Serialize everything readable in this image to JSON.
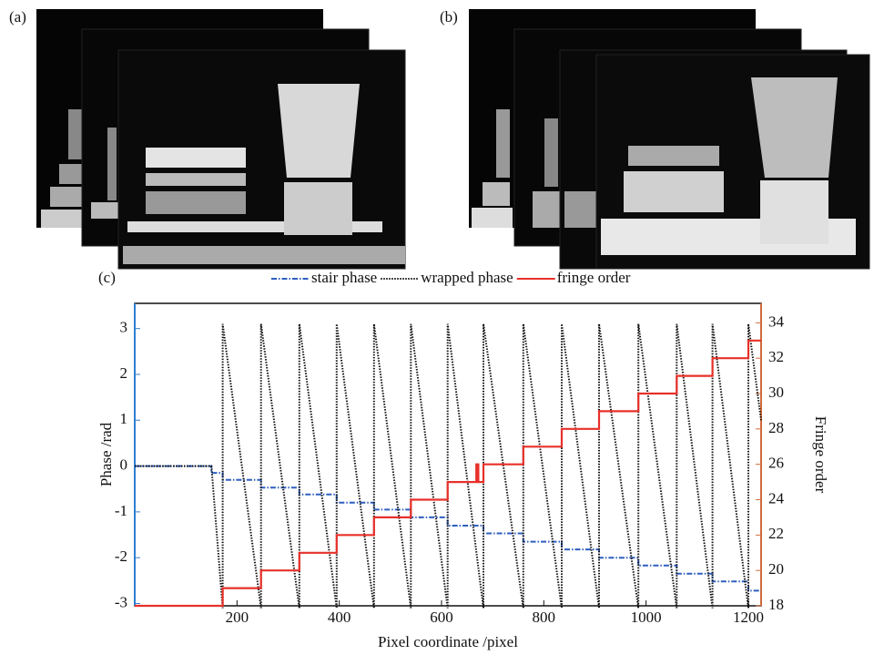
{
  "figure": {
    "panel_labels": [
      "(a)",
      "(b)"
    ]
  },
  "chart_data": {
    "type": "line",
    "label": "(c)",
    "xlabel": "Pixel coordinate /pixel",
    "ylabel": "Phase /rad",
    "y2label": "Fringe order",
    "xlim": [
      0,
      1225
    ],
    "xticks": [
      200,
      400,
      600,
      800,
      1000,
      1200
    ],
    "ylim": [
      -3.05,
      3.55
    ],
    "yticks": [
      -3,
      -2,
      -1,
      0,
      1,
      2,
      3
    ],
    "y2lim": [
      18,
      35.1
    ],
    "y2ticks": [
      18,
      20,
      22,
      24,
      26,
      28,
      30,
      32,
      34
    ],
    "series": [
      {
        "name": "stair phase",
        "color": "#2f5fbf",
        "line_style": "dash-dot",
        "x": [
          0,
          150,
          150,
          172,
          172,
          247,
          247,
          322,
          322,
          395,
          395,
          468,
          468,
          540,
          540,
          612,
          612,
          682,
          682,
          760,
          760,
          835,
          835,
          908,
          908,
          985,
          985,
          1060,
          1060,
          1130,
          1130,
          1200,
          1200,
          1225
        ],
        "values": [
          0,
          0,
          -0.15,
          -0.15,
          -0.3,
          -0.3,
          -0.47,
          -0.47,
          -0.62,
          -0.62,
          -0.8,
          -0.8,
          -0.95,
          -0.95,
          -1.12,
          -1.12,
          -1.3,
          -1.3,
          -1.47,
          -1.47,
          -1.65,
          -1.65,
          -1.82,
          -1.82,
          -2.0,
          -2.0,
          -2.17,
          -2.17,
          -2.35,
          -2.35,
          -2.52,
          -2.52,
          -2.72,
          -2.72
        ]
      },
      {
        "name": "wrapped phase",
        "color": "#111111",
        "line_style": "dotted",
        "x": [
          0,
          150,
          172,
          172,
          247,
          247,
          322,
          322,
          395,
          395,
          468,
          468,
          540,
          540,
          612,
          612,
          682,
          682,
          760,
          760,
          835,
          835,
          908,
          908,
          985,
          985,
          1060,
          1060,
          1130,
          1130,
          1200,
          1200,
          1225
        ],
        "values": [
          0,
          0,
          -3.1,
          3.1,
          -3.1,
          3.1,
          -3.1,
          3.1,
          -3.1,
          3.1,
          -3.1,
          3.1,
          -3.1,
          3.1,
          -3.1,
          3.1,
          -3.1,
          3.1,
          -3.1,
          3.1,
          -3.1,
          3.1,
          -3.1,
          3.1,
          -3.1,
          3.1,
          -3.1,
          3.1,
          -3.1,
          3.1,
          -3.1,
          3.1,
          1.0
        ]
      },
      {
        "name": "fringe order",
        "color": "#e8302a",
        "line_style": "solid",
        "axis": "y2",
        "x": [
          0,
          172,
          172,
          247,
          247,
          322,
          322,
          395,
          395,
          468,
          468,
          540,
          540,
          612,
          612,
          668,
          668,
          672,
          672,
          682,
          682,
          760,
          760,
          835,
          835,
          908,
          908,
          985,
          985,
          1060,
          1060,
          1130,
          1130,
          1200,
          1200,
          1225
        ],
        "values": [
          18,
          18,
          19,
          19,
          20,
          20,
          21,
          21,
          22,
          22,
          23,
          23,
          24,
          24,
          25,
          25,
          26,
          26,
          25,
          25,
          26,
          26,
          27,
          27,
          28,
          28,
          29,
          29,
          30,
          30,
          31,
          31,
          32,
          32,
          33,
          33
        ]
      }
    ]
  }
}
